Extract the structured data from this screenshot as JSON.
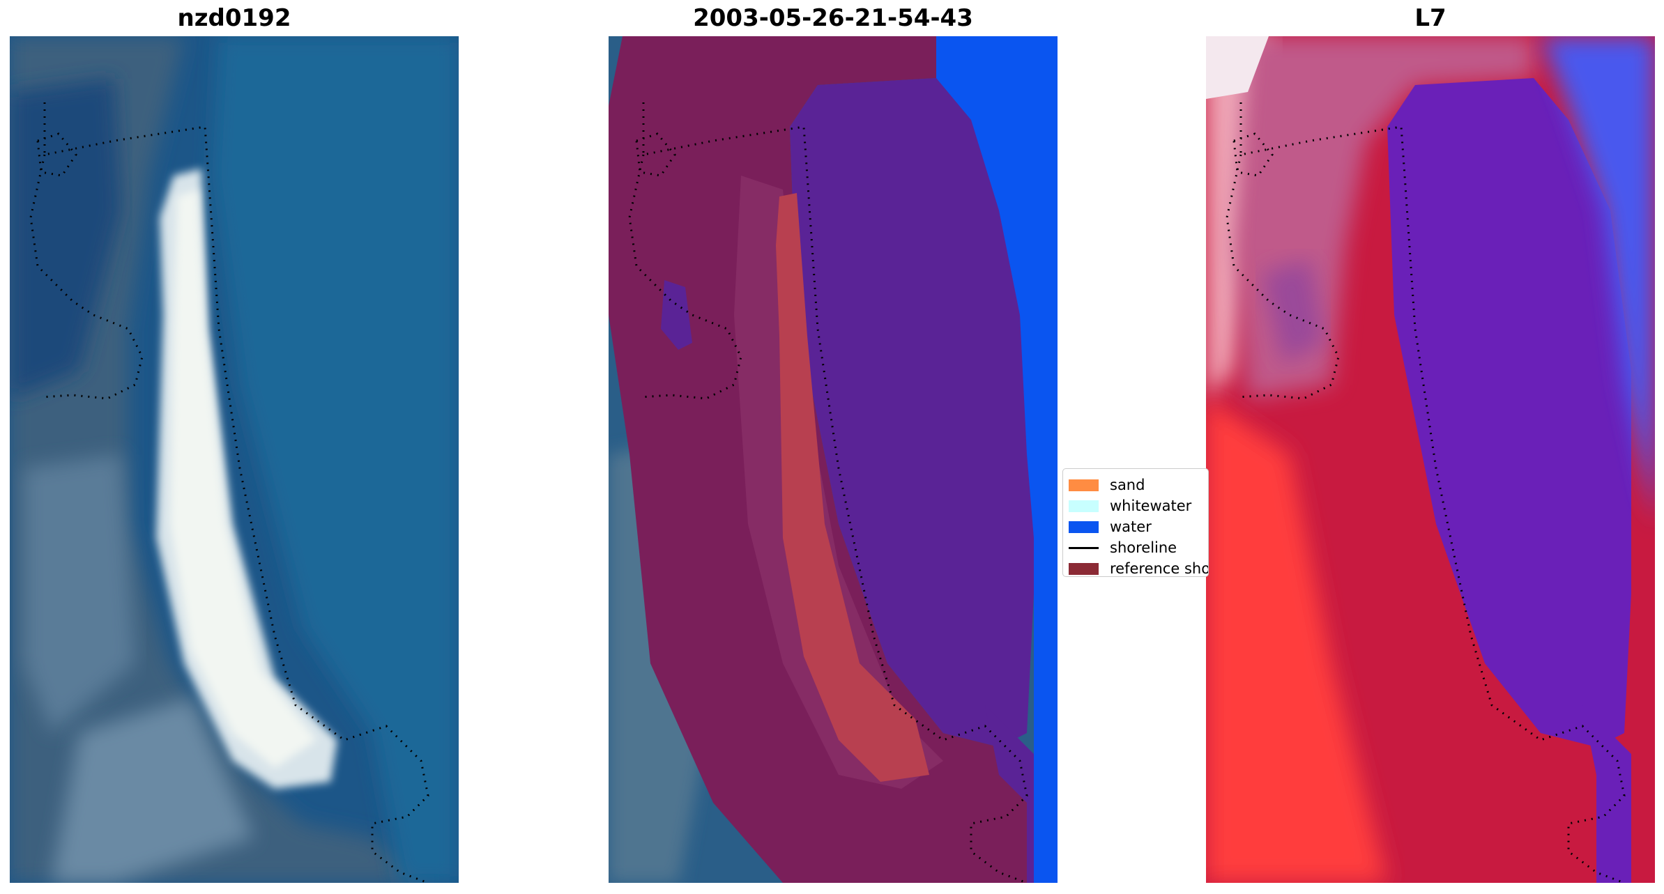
{
  "panels": [
    {
      "title": "nzd0192"
    },
    {
      "title": "2003-05-26-21-54-43"
    },
    {
      "title": "L7"
    }
  ],
  "legend": [
    {
      "label": "sand",
      "kind": "patch",
      "color": "#ff8c42"
    },
    {
      "label": "whitewater",
      "kind": "patch",
      "color": "#c8ffff"
    },
    {
      "label": "water",
      "kind": "patch",
      "color": "#0a55f0"
    },
    {
      "label": "shoreline",
      "kind": "line",
      "color": "#000000"
    },
    {
      "label": "reference shoreline buffer",
      "kind": "patch",
      "color": "#8b2a35"
    }
  ],
  "colors": {
    "rgb_sea": "#1f5f8f",
    "rgb_land": "#4a6a86",
    "rgb_beach": "#e6eef0",
    "buffer": "#7a2058",
    "classified_water": "#0a55f0",
    "buffer_water": "#5a2396",
    "buffer_sand": "#b84050",
    "mndwi_water": "#6a20c0",
    "mndwi_land": "#c0163c",
    "mndwi_bright": "#ff3a3a"
  }
}
